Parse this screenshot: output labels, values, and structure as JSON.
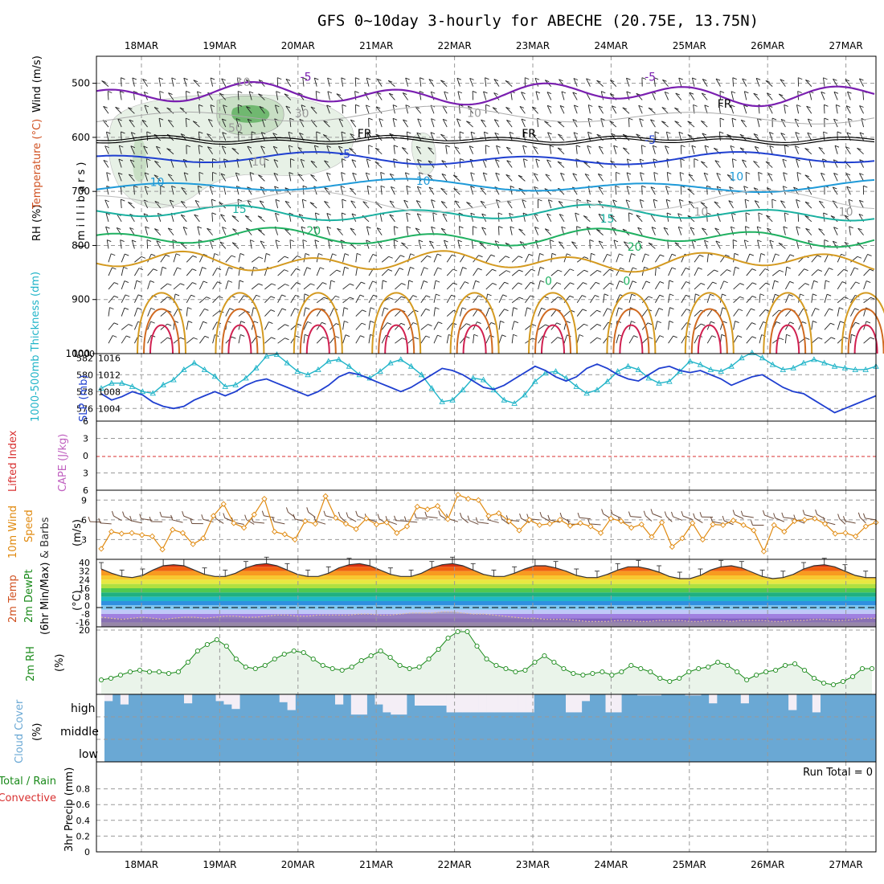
{
  "title": "GFS 0~10day 3-hourly for ABECHE (20.75E, 13.75N)",
  "date_labels": [
    "18MAR",
    "19MAR",
    "20MAR",
    "21MAR",
    "22MAR",
    "23MAR",
    "24MAR",
    "25MAR",
    "26MAR",
    "27MAR"
  ],
  "colors": {
    "pressure_temp_labels": [
      "#7a1fb0",
      "#1f3fd0",
      "#1f9ad8",
      "#1ab0a0",
      "#1fb060",
      "#d49a20",
      "#d06a20",
      "#d02050"
    ],
    "thickness": "#20b4c8",
    "slp": "#1f3fd0",
    "wind_speed": "#e08a10",
    "rh_2m": "#1a8a1a",
    "cloud": "#6aa8d4",
    "cloud_gap": "#f4eef6"
  },
  "chart_data": [
    {
      "type": "line",
      "panel": "upper-air",
      "ylabel_parts": [
        "Wind (m/s)",
        "Temperature (°C)",
        "RH (%)",
        "( m i l l i b a r s )"
      ],
      "y_ticks": [
        500,
        600,
        700,
        800,
        900,
        1000
      ],
      "ylim": [
        450,
        1000
      ],
      "contour_labels": [
        {
          "text": "-5",
          "x": 2.1,
          "p": 495,
          "color": "#7a1fb0"
        },
        {
          "text": "-5",
          "x": 6.5,
          "p": 495,
          "color": "#7a1fb0"
        },
        {
          "text": "-5",
          "x": 2.6,
          "p": 638,
          "color": "#1f3fd0"
        },
        {
          "text": "-5",
          "x": 6.5,
          "p": 612,
          "color": "#1f3fd0"
        },
        {
          "text": "10",
          "x": 0.2,
          "p": 690,
          "color": "#1f9ad8"
        },
        {
          "text": "10",
          "x": 3.6,
          "p": 688,
          "color": "#1f9ad8"
        },
        {
          "text": "10",
          "x": 7.6,
          "p": 680,
          "color": "#1f9ad8"
        },
        {
          "text": "15",
          "x": 1.25,
          "p": 740,
          "color": "#1ab0a0"
        },
        {
          "text": "15",
          "x": 5.95,
          "p": 758,
          "color": "#1ab0a0"
        },
        {
          "text": "20",
          "x": 2.2,
          "p": 780,
          "color": "#1fb060"
        },
        {
          "text": "20",
          "x": 6.3,
          "p": 810,
          "color": "#1fb060"
        },
        {
          "text": "0",
          "x": 5.2,
          "p": 873,
          "color": "#1fb060"
        },
        {
          "text": "0",
          "x": 6.2,
          "p": 873,
          "color": "#1fb060"
        },
        {
          "text": "FR",
          "x": 2.85,
          "p": 600,
          "color": "#000000"
        },
        {
          "text": "FR",
          "x": 4.95,
          "p": 600,
          "color": "#000000"
        },
        {
          "text": "FR",
          "x": 7.45,
          "p": 545,
          "color": "#000000"
        },
        {
          "text": "10",
          "x": 1.3,
          "p": 505,
          "color": "#999999"
        },
        {
          "text": "30",
          "x": 2.05,
          "p": 563,
          "color": "#999999"
        },
        {
          "text": "10",
          "x": 4.25,
          "p": 562,
          "color": "#999999"
        },
        {
          "text": "50",
          "x": 1.2,
          "p": 590,
          "color": "#999999"
        },
        {
          "text": "10",
          "x": 1.5,
          "p": 652,
          "color": "#999999"
        },
        {
          "text": "10",
          "x": 7.15,
          "p": 745,
          "color": "#999999"
        },
        {
          "text": "10",
          "x": 9.0,
          "p": 745,
          "color": "#999999"
        }
      ]
    },
    {
      "type": "line",
      "panel": "thickness-slp",
      "ylabel_left": "1000-500mb Thickness (dm)",
      "ylabel_right": "SLP (mb)",
      "left_ticks": [
        576,
        578,
        580,
        582
      ],
      "right_ticks": [
        1004,
        1008,
        1012,
        1016
      ],
      "slp_ylim": [
        1001,
        1017
      ],
      "series": [
        {
          "name": "Thickness",
          "values": [
            578.4,
            579.0,
            579.0,
            578.6,
            578.0,
            577.8,
            578.8,
            579.4,
            580.6,
            581.4,
            580.6,
            579.8,
            578.6,
            578.8,
            579.6,
            580.8,
            582.2,
            582.4,
            581.4,
            580.4,
            580.0,
            580.6,
            581.6,
            581.8,
            581.0,
            580.0,
            579.6,
            580.4,
            581.4,
            581.8,
            581.0,
            580.0,
            578.4,
            576.8,
            577.0,
            578.2,
            579.6,
            579.4,
            578.2,
            577.0,
            576.6,
            577.6,
            579.2,
            580.2,
            580.4,
            579.6,
            578.6,
            577.8,
            578.2,
            579.2,
            580.4,
            581.0,
            580.6,
            579.6,
            579.0,
            579.2,
            580.4,
            581.6,
            581.2,
            580.6,
            580.4,
            581.0,
            582.0,
            582.6,
            582.0,
            581.2,
            580.6,
            580.8,
            581.4,
            581.8,
            581.4,
            581.0,
            580.8,
            580.6,
            580.6,
            581.0
          ]
        },
        {
          "name": "SLP",
          "values": [
            1007.5,
            1006.0,
            1006.8,
            1008.0,
            1007.2,
            1005.5,
            1004.5,
            1004.0,
            1004.5,
            1006.0,
            1007.0,
            1008.0,
            1007.0,
            1008.0,
            1009.5,
            1010.5,
            1011.0,
            1010.0,
            1009.0,
            1008.0,
            1007.0,
            1008.0,
            1009.5,
            1011.5,
            1012.5,
            1012.0,
            1011.0,
            1010.0,
            1009.0,
            1008.0,
            1009.0,
            1010.5,
            1012.0,
            1013.5,
            1013.0,
            1012.0,
            1010.5,
            1009.0,
            1008.5,
            1009.5,
            1011.0,
            1012.5,
            1014.0,
            1013.0,
            1011.5,
            1010.5,
            1011.5,
            1013.5,
            1014.5,
            1013.5,
            1012.0,
            1011.0,
            1010.5,
            1012.0,
            1013.5,
            1014.0,
            1013.0,
            1012.5,
            1013.0,
            1012.0,
            1011.0,
            1009.5,
            1010.5,
            1011.5,
            1012.0,
            1010.5,
            1009.0,
            1008.0,
            1007.5,
            1006.0,
            1004.5,
            1003.0,
            1004.0,
            1005.0,
            1006.0,
            1007.0
          ]
        }
      ]
    },
    {
      "type": "line",
      "panel": "lifted-index-cape",
      "ylabel_left": "Lifted Index",
      "ylabel_right": "CAPE (J/kg)",
      "y_ticks": [
        -6,
        -3,
        0,
        3,
        6
      ],
      "ylim": [
        -6,
        6
      ]
    },
    {
      "type": "line",
      "panel": "wind-10m",
      "ylabel_lines": [
        "10m Wind",
        "Speed",
        "& Barbs"
      ],
      "ylabel_unit": "(m/s)",
      "y_ticks": [
        3,
        6,
        9
      ],
      "ylim": [
        0,
        10.5
      ],
      "series": [
        {
          "name": "Speed",
          "values": [
            1.6,
            4.2,
            3.9,
            4.0,
            3.7,
            3.5,
            1.5,
            4.5,
            4.0,
            2.3,
            3.2,
            6.6,
            8.4,
            5.5,
            4.8,
            6.8,
            9.2,
            4.2,
            3.8,
            3.0,
            5.8,
            5.4,
            9.6,
            6.3,
            5.4,
            4.6,
            6.2,
            5.3,
            5.6,
            4.0,
            5.0,
            8.0,
            7.6,
            8.1,
            6.1,
            9.8,
            9.2,
            9.0,
            6.6,
            7.0,
            5.8,
            4.4,
            6.0,
            5.2,
            5.4,
            6.0,
            5.1,
            5.5,
            5.0,
            4.0,
            6.2,
            5.8,
            4.8,
            5.3,
            3.4,
            5.6,
            1.9,
            3.2,
            5.5,
            3.0,
            5.3,
            5.2,
            5.9,
            5.2,
            4.4,
            1.2,
            5.2,
            4.2,
            5.8,
            6.0,
            6.2,
            5.4,
            3.9,
            4.0,
            3.5,
            5.0,
            5.6
          ]
        }
      ]
    },
    {
      "type": "area",
      "panel": "temp-2m",
      "ylabel_lines": [
        "2m Temp",
        "2m DewPt",
        "(6hr Min/Max)"
      ],
      "ylabel_unit": "(°C)",
      "y_ticks": [
        40,
        32,
        24,
        16,
        8,
        0,
        -8,
        -16
      ],
      "ylim": [
        -20,
        43
      ],
      "series": [
        {
          "name": "Temperature",
          "values": [
            34,
            30,
            27,
            26,
            28,
            33,
            37,
            38,
            37,
            33,
            29,
            27,
            27,
            30,
            35,
            38,
            39,
            37,
            33,
            29,
            27,
            27,
            30,
            35,
            38,
            39,
            37,
            33,
            29,
            27,
            27,
            30,
            35,
            38,
            39,
            37,
            33,
            29,
            27,
            27,
            30,
            34,
            37,
            37,
            35,
            32,
            28,
            26,
            26,
            29,
            33,
            36,
            36,
            34,
            31,
            27,
            25,
            25,
            28,
            33,
            36,
            37,
            35,
            31,
            27,
            25,
            26,
            29,
            34,
            37,
            38,
            36,
            32,
            28,
            26,
            26
          ]
        },
        {
          "name": "DewPt",
          "values": [
            -11,
            -12,
            -13,
            -12,
            -11,
            -12,
            -13,
            -12,
            -11,
            -11,
            -12,
            -11,
            -10,
            -10,
            -11,
            -11,
            -10,
            -9,
            -9,
            -10,
            -10,
            -9,
            -9,
            -9,
            -9,
            -8,
            -8,
            -9,
            -9,
            -8,
            -7,
            -7,
            -7,
            -6,
            -6,
            -7,
            -8,
            -8,
            -9,
            -10,
            -11,
            -12,
            -12,
            -13,
            -13,
            -13,
            -14,
            -15,
            -15,
            -15,
            -14,
            -14,
            -15,
            -15,
            -14,
            -14,
            -14,
            -15,
            -15,
            -14,
            -14,
            -15,
            -14,
            -14,
            -14,
            -15,
            -15,
            -14,
            -14,
            -13,
            -13,
            -14,
            -14,
            -13,
            -12,
            -12
          ]
        }
      ]
    },
    {
      "type": "area",
      "panel": "rh-2m",
      "ylabel": "2m RH",
      "ylabel_unit": "(%)",
      "y_ticks": [
        20
      ],
      "ylim": [
        0,
        21
      ],
      "series": [
        {
          "name": "2m RH",
          "values": [
            4.5,
            5,
            6,
            7,
            7.5,
            7,
            7,
            6.5,
            7,
            10,
            13.5,
            15.5,
            17,
            15,
            11,
            8.5,
            8,
            9,
            11,
            12.5,
            13.5,
            13,
            11,
            9,
            8,
            7.5,
            8.5,
            10.5,
            12,
            13.5,
            11.5,
            9,
            8,
            8.5,
            11,
            14,
            17.5,
            19.5,
            19.5,
            15,
            11,
            9,
            8,
            7,
            7.5,
            10,
            12,
            10,
            8,
            6.5,
            6,
            6.5,
            7,
            6,
            7,
            9,
            8,
            7,
            5,
            4,
            5,
            7,
            8,
            8.5,
            10,
            9,
            7,
            4.5,
            6,
            7,
            7.5,
            9,
            9.5,
            7.5,
            5,
            3.5,
            3,
            4,
            5.5,
            8,
            8
          ]
        }
      ]
    },
    {
      "type": "bar",
      "panel": "cloud-cover",
      "ylabel": "Cloud Cover",
      "ylabel_unit": "(%)",
      "levels": [
        "high",
        "middle",
        "low"
      ],
      "high_cover": [
        70,
        100,
        55,
        100,
        100,
        100,
        100,
        100,
        100,
        100,
        60,
        100,
        100,
        100,
        70,
        55,
        35,
        100,
        100,
        100,
        100,
        100,
        65,
        30,
        100,
        100,
        100,
        100,
        100,
        55,
        100,
        10,
        10,
        100,
        55,
        20,
        10,
        10,
        100,
        50,
        50,
        50,
        50,
        20,
        20,
        20,
        20,
        20,
        20,
        20,
        20,
        20,
        20,
        20,
        100,
        100,
        100,
        100,
        20,
        20,
        70,
        100,
        100,
        20,
        20,
        100,
        100,
        95,
        95,
        95,
        100,
        100,
        100,
        95,
        95,
        100,
        60,
        100,
        100,
        100,
        60,
        100,
        100,
        100,
        100,
        100,
        30,
        100,
        100,
        20,
        100,
        100,
        100,
        100,
        100,
        100,
        100
      ]
    },
    {
      "type": "bar",
      "panel": "precip-3hr",
      "ylabel_lines": [
        "Total / Rain",
        "Convective"
      ],
      "ylabel_unit": "3hr Precip (mm)",
      "run_total": "Run Total = 0",
      "y_ticks": [
        0,
        0.2,
        0.4,
        0.6,
        0.8
      ],
      "ylim": [
        0,
        1
      ],
      "values": []
    }
  ]
}
